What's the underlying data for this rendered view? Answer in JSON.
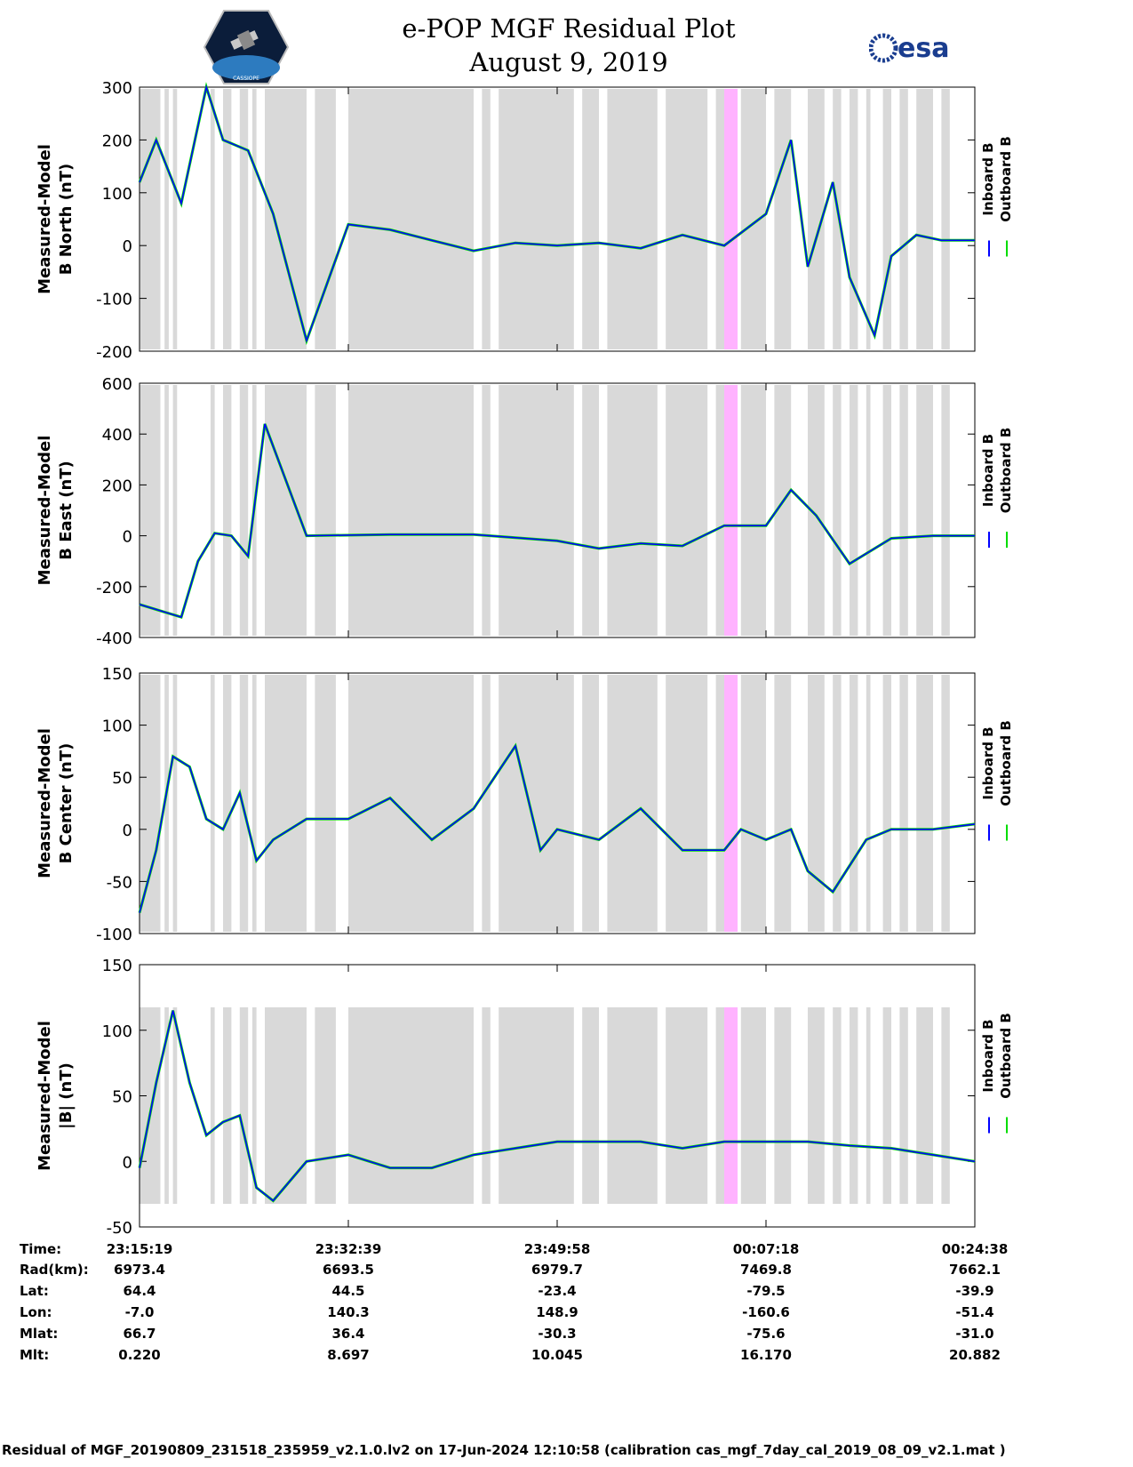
{
  "header": {
    "title_line1": "e-POP MGF Residual Plot",
    "title_line2": "August 9, 2019",
    "logo_left_text": "CASSIOPE",
    "logo_right_text": "esa"
  },
  "colors": {
    "inboard": "#0000ff",
    "outboard": "#00dd00",
    "gap": "#d9d9d9",
    "highlight": "#ffb3ff"
  },
  "chart_data": [
    {
      "type": "line",
      "ylabel_line1": "Measured-Model",
      "ylabel_line2": "B North (nT)",
      "ylim": [
        -200,
        300
      ],
      "yticks": [
        "300",
        "200",
        "100",
        "0",
        "-100",
        "-200"
      ],
      "legend": [
        "Inboard B",
        "Outboard B"
      ],
      "series": [
        {
          "name": "Inboard B",
          "x": [
            0,
            0.02,
            0.05,
            0.08,
            0.1,
            0.13,
            0.16,
            0.2,
            0.25,
            0.3,
            0.35,
            0.4,
            0.45,
            0.5,
            0.55,
            0.6,
            0.65,
            0.7,
            0.75,
            0.78,
            0.8,
            0.83,
            0.85,
            0.88,
            0.9,
            0.93,
            0.96,
            1.0
          ],
          "y": [
            120,
            200,
            80,
            300,
            200,
            180,
            60,
            -180,
            40,
            30,
            10,
            -10,
            5,
            0,
            5,
            -5,
            20,
            0,
            60,
            200,
            -40,
            120,
            -60,
            -170,
            -20,
            20,
            10,
            10
          ]
        }
      ]
    },
    {
      "type": "line",
      "ylabel_line1": "Measured-Model",
      "ylabel_line2": "B East (nT)",
      "ylim": [
        -400,
        600
      ],
      "yticks": [
        "600",
        "400",
        "200",
        "0",
        "-200",
        "-400"
      ],
      "legend": [
        "Inboard B",
        "Outboard B"
      ],
      "series": [
        {
          "name": "Inboard B",
          "x": [
            0,
            0.03,
            0.05,
            0.07,
            0.09,
            0.11,
            0.13,
            0.15,
            0.2,
            0.3,
            0.4,
            0.5,
            0.55,
            0.6,
            0.65,
            0.7,
            0.75,
            0.78,
            0.81,
            0.85,
            0.9,
            0.95,
            1.0
          ],
          "y": [
            -270,
            -300,
            -320,
            -100,
            10,
            0,
            -80,
            440,
            0,
            5,
            5,
            -20,
            -50,
            -30,
            -40,
            40,
            40,
            180,
            80,
            -110,
            -10,
            0,
            0
          ]
        }
      ]
    },
    {
      "type": "line",
      "ylabel_line1": "Measured-Model",
      "ylabel_line2": "B Center (nT)",
      "ylim": [
        -100,
        150
      ],
      "yticks": [
        "150",
        "100",
        "50",
        "0",
        "-50",
        "-100"
      ],
      "legend": [
        "Inboard B",
        "Outboard B"
      ],
      "series": [
        {
          "name": "Inboard B",
          "x": [
            0,
            0.02,
            0.04,
            0.06,
            0.08,
            0.1,
            0.12,
            0.14,
            0.16,
            0.2,
            0.25,
            0.3,
            0.35,
            0.4,
            0.45,
            0.48,
            0.5,
            0.55,
            0.6,
            0.65,
            0.7,
            0.72,
            0.75,
            0.78,
            0.8,
            0.83,
            0.87,
            0.9,
            0.95,
            1.0
          ],
          "y": [
            -80,
            -20,
            70,
            60,
            10,
            0,
            35,
            -30,
            -10,
            10,
            10,
            30,
            -10,
            20,
            80,
            -20,
            0,
            -10,
            20,
            -20,
            -20,
            0,
            -10,
            0,
            -40,
            -60,
            -10,
            0,
            0,
            5
          ]
        }
      ]
    },
    {
      "type": "line",
      "ylabel_line1": "Measured-Model",
      "ylabel_line2": "|B| (nT)",
      "ylim": [
        -50,
        150
      ],
      "yticks": [
        "150",
        "100",
        "50",
        "0",
        "-50"
      ],
      "legend": [
        "Inboard B",
        "Outboard B"
      ],
      "series": [
        {
          "name": "Inboard B",
          "x": [
            0,
            0.02,
            0.04,
            0.06,
            0.08,
            0.1,
            0.12,
            0.14,
            0.16,
            0.2,
            0.25,
            0.3,
            0.35,
            0.4,
            0.5,
            0.6,
            0.65,
            0.7,
            0.75,
            0.8,
            0.85,
            0.9,
            0.95,
            1.0
          ],
          "y": [
            -5,
            60,
            115,
            60,
            20,
            30,
            35,
            -20,
            -30,
            0,
            5,
            -5,
            -5,
            5,
            15,
            15,
            10,
            15,
            15,
            15,
            12,
            10,
            5,
            0
          ]
        }
      ]
    }
  ],
  "x_axis": {
    "row_labels": [
      "Time:",
      "Rad(km):",
      "Lat:",
      "Lon:",
      "Mlat:",
      "Mlt:"
    ],
    "columns": [
      [
        "23:15:19",
        "6973.4",
        "64.4",
        "-7.0",
        "66.7",
        "0.220"
      ],
      [
        "23:32:39",
        "6693.5",
        "44.5",
        "140.3",
        "36.4",
        "8.697"
      ],
      [
        "23:49:58",
        "6979.7",
        "-23.4",
        "148.9",
        "-30.3",
        "10.045"
      ],
      [
        "00:07:18",
        "7469.8",
        "-79.5",
        "-160.6",
        "-75.6",
        "16.170"
      ],
      [
        "00:24:38",
        "7662.1",
        "-39.9",
        "-51.4",
        "-31.0",
        "20.882"
      ]
    ]
  },
  "footer": "Residual of MGF_20190809_231518_235959_v2.1.0.lv2 on 17-Jun-2024 12:10:58 (calibration cas_mgf_7day_cal_2019_08_09_v2.1.mat )"
}
